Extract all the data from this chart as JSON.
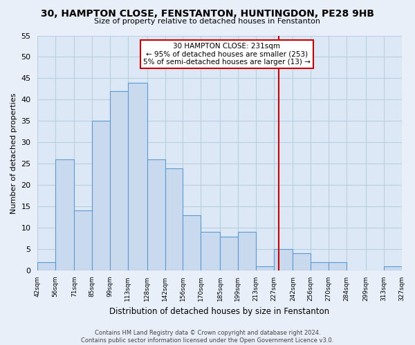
{
  "title": "30, HAMPTON CLOSE, FENSTANTON, HUNTINGDON, PE28 9HB",
  "subtitle": "Size of property relative to detached houses in Fenstanton",
  "xlabel": "Distribution of detached houses by size in Fenstanton",
  "ylabel": "Number of detached properties",
  "bins": [
    42,
    56,
    71,
    85,
    99,
    113,
    128,
    142,
    156,
    170,
    185,
    199,
    213,
    227,
    242,
    256,
    270,
    284,
    299,
    313,
    327
  ],
  "bar_heights": [
    2,
    26,
    14,
    35,
    42,
    44,
    26,
    24,
    13,
    9,
    8,
    9,
    1,
    5,
    4,
    2,
    2,
    0,
    0,
    1
  ],
  "bar_color": "#c9d9ee",
  "bar_edge_color": "#5b9bd5",
  "reference_line_x": 231,
  "reference_line_color": "#cc0000",
  "annotation_title": "30 HAMPTON CLOSE: 231sqm",
  "annotation_line1": "← 95% of detached houses are smaller (253)",
  "annotation_line2": "5% of semi-detached houses are larger (13) →",
  "annotation_box_color": "#ffffff",
  "annotation_box_edge_color": "#cc0000",
  "ylim": [
    0,
    55
  ],
  "yticks": [
    0,
    5,
    10,
    15,
    20,
    25,
    30,
    35,
    40,
    45,
    50,
    55
  ],
  "tick_labels": [
    "42sqm",
    "56sqm",
    "71sqm",
    "85sqm",
    "99sqm",
    "113sqm",
    "128sqm",
    "142sqm",
    "156sqm",
    "170sqm",
    "185sqm",
    "199sqm",
    "213sqm",
    "227sqm",
    "242sqm",
    "256sqm",
    "270sqm",
    "284sqm",
    "299sqm",
    "313sqm",
    "327sqm"
  ],
  "footer_line1": "Contains HM Land Registry data © Crown copyright and database right 2024.",
  "footer_line2": "Contains public sector information licensed under the Open Government Licence v3.0.",
  "background_color": "#e8eff8",
  "grid_color": "#b8cfe0",
  "plot_bg_color": "#dce8f5"
}
